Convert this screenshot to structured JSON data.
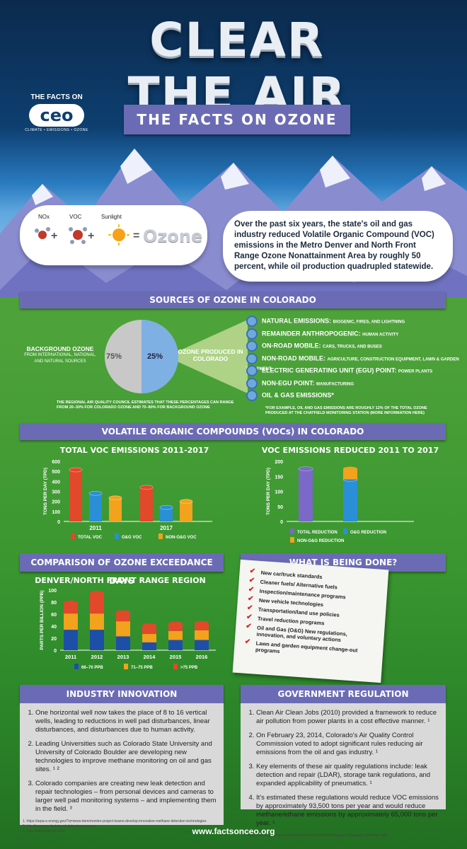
{
  "header": {
    "title": "CLEAR THE AIR",
    "subtitle": "THE FACTS ON OZONE",
    "logo_top": "THE FACTS ON",
    "logo_mark": "ceo",
    "logo_sub": "CLIMATE • EMISSIONS • OZONE"
  },
  "formula": {
    "nox": "NOx",
    "voc": "VOC",
    "sunlight": "Sunlight",
    "plus": "+",
    "equals": "=",
    "result": "Ozone"
  },
  "intro_text": "Over the past six years, the state's oil and gas industry reduced Volatile Organic Compound (VOC) emissions in the Metro Denver and North Front Range Ozone Nonattainment Area by roughly 50 percent, while oil production quadrupled statewide.",
  "sources": {
    "heading": "SOURCES OF OZONE IN COLORADO",
    "background_label": "BACKGROUND OZONE",
    "background_sub": "FROM INTERNATIONAL, NATIONAL, AND NATURAL SOURCES",
    "produced_label": "OZONE PRODUCED IN COLORADO",
    "pie_chart_data": {
      "type": "pie",
      "slices": [
        {
          "label": "Background ozone",
          "value": 75,
          "text": "75%"
        },
        {
          "label": "Ozone produced in Colorado",
          "value": 25,
          "text": "25%"
        }
      ]
    },
    "council_note": "THE REGIONAL AIR QUALITY COUNCIL ESTIMATES THAT THESE PERCENTAGES CAN RANGE FROM 20–30% FOR COLORADO OZONE AND 70–80% FOR BACKGROUND OZONE",
    "items": [
      {
        "name": "NATURAL EMISSIONS:",
        "detail": "BIOGENIC, FIRES, AND LIGHTNING"
      },
      {
        "name": "REMAINDER ANTHROPOGENIC:",
        "detail": "HUMAN ACTIVITY"
      },
      {
        "name": "ON-ROAD MOBILE:",
        "detail": "CARS, TRUCKS, AND BUSES"
      },
      {
        "name": "NON-ROAD MOBILE:",
        "detail": "AGRICULTURE, CONSTRUCTION EQUIPMENT, LAWN & GARDEN EQUIPMENT"
      },
      {
        "name": "ELECTRIC GENERATING UNIT (EGU) POINT:",
        "detail": "POWER PLANTS"
      },
      {
        "name": "NON-EGU POINT:",
        "detail": "MANUFACTURING"
      },
      {
        "name": "OIL & GAS EMISSIONS*",
        "detail": ""
      }
    ],
    "footnote": "*FOR EXAMPLE, OIL AND GAS EMISSIONS ARE ROUGHLY 12% OF THE TOTAL OZONE PRODUCED AT THE CHATFIELD MONITORING STATION (MORE INFORMATION HERE)"
  },
  "voc": {
    "heading": "VOLATILE ORGANIC COMPOUNDS (VOCs) IN COLORADO"
  },
  "chart_data": [
    {
      "type": "bar",
      "title": "TOTAL VOC EMISSIONS 2011-2017",
      "ylabel": "TONS PER DAY (TPD)",
      "ylim": [
        0,
        600
      ],
      "yticks": [
        0,
        100,
        200,
        300,
        400,
        500,
        600
      ],
      "categories": [
        "2011",
        "2017"
      ],
      "series": [
        {
          "name": "TOTAL VOC",
          "color": "#e2482a",
          "values": [
            515,
            340
          ]
        },
        {
          "name": "O&G VOC",
          "color": "#2a8fd6",
          "values": [
            280,
            140
          ]
        },
        {
          "name": "NON-O&G VOC",
          "color": "#f2a21c",
          "values": [
            235,
            200
          ]
        }
      ]
    },
    {
      "type": "bar",
      "title": "VOC EMISSIONS REDUCED 2011 TO 2017",
      "ylabel": "TONS PER DAY (TPD)",
      "ylim": [
        0,
        200
      ],
      "yticks": [
        0,
        50,
        100,
        150,
        200
      ],
      "series": [
        {
          "name": "TOTAL REDUCTION",
          "color": "#7b68c8",
          "values": [
            175
          ]
        },
        {
          "name": "O&G REDUCTION",
          "color": "#2a8fd6",
          "values": [
            140
          ]
        },
        {
          "name": "NON-O&G REDUCTION",
          "color": "#f2a21c",
          "values": [
            35
          ]
        }
      ]
    },
    {
      "type": "bar",
      "title": "DENVER/NORTH FRONT RANGE REGION",
      "ylabel": "PARTS PER BILLION (PPB)",
      "ylim": [
        0,
        100
      ],
      "yticks": [
        0,
        20,
        40,
        60,
        80,
        100
      ],
      "categories": [
        "2011",
        "2012",
        "2013",
        "2014",
        "2015",
        "2016"
      ],
      "stacked": true,
      "series": [
        {
          "name": "66–70 PPB",
          "color": "#1d4fa8",
          "values": [
            34,
            34,
            23,
            13,
            17,
            17
          ]
        },
        {
          "name": "71–75 PPB",
          "color": "#f2a21c",
          "values": [
            27,
            27,
            25,
            14,
            15,
            16
          ]
        },
        {
          "name": ">75 PPB",
          "color": "#e2482a",
          "values": [
            18,
            34,
            15,
            14,
            12,
            12
          ]
        }
      ]
    }
  ],
  "exceedance": {
    "heading": "COMPARISON OF OZONE EXCEEDANCE DAYS"
  },
  "being_done": {
    "heading": "WHAT IS BEING DONE?",
    "items": [
      "New car/truck standards",
      "Cleaner fuels/ Alternative fuels",
      "Inspection/maintenance programs",
      "New vehicle technologies",
      "Transportation/land use policies",
      "Travel reduction programs",
      "Oil and Gas (O&G) New regulations, innovation, and voluntary actions",
      "Lawn and garden equipment change-out programs"
    ]
  },
  "industry": {
    "heading": "INDUSTRY INNOVATION",
    "points": [
      "One horizontal well now takes the place of 8 to 16 vertical wells, leading to reductions in well pad disturbances, linear disturbances, and disturbances due to human activity.",
      "Leading Universities such as Colorado State University and University of Colorado Boulder are developing new technologies to improve methane monitoring on oil and gas sites. ¹ ²",
      "Colorado companies are creating new leak detection and repair technologies – from personal devices and cameras to larger well pad monitoring systems – and implementing them in the field. ³"
    ],
    "footnotes": [
      "1. https://arpa-e.energy.gov/?q=news-item/monitor-project-teams-develop-innovative-methane-detection-technologies",
      "2. http://energy.colostate.edu/p/metec-program",
      "3. http://www.questo2.com/"
    ]
  },
  "government": {
    "heading": "GOVERNMENT REGULATION",
    "points": [
      "Clean Air Clean Jobs (2010) provided a framework to reduce air pollution from power plants in a cost effective manner. ¹",
      "On February 23, 2014, Colorado's Air Quality Control Commission voted to adopt significant rules reducing air emissions from the oil and gas industry. ¹",
      "Key elements of these air quality regulations include: leak detection and repair (LDAR), storage tank regulations, and expanded applicability of pneumatics. ¹",
      "It's estimated these regulations would reduce VOC emissions by approximately 93,500 tons per year and would reduce methane/ethane emissions by approximately 65,000 tons per year. ¹"
    ],
    "footnotes": [
      "1. http://www.cogga.org/wp-content/uploads/2016/04/Whitepaper–Regulatory–Timeline–.pdf"
    ]
  },
  "footer": {
    "url": "www.factsonceo.org"
  }
}
